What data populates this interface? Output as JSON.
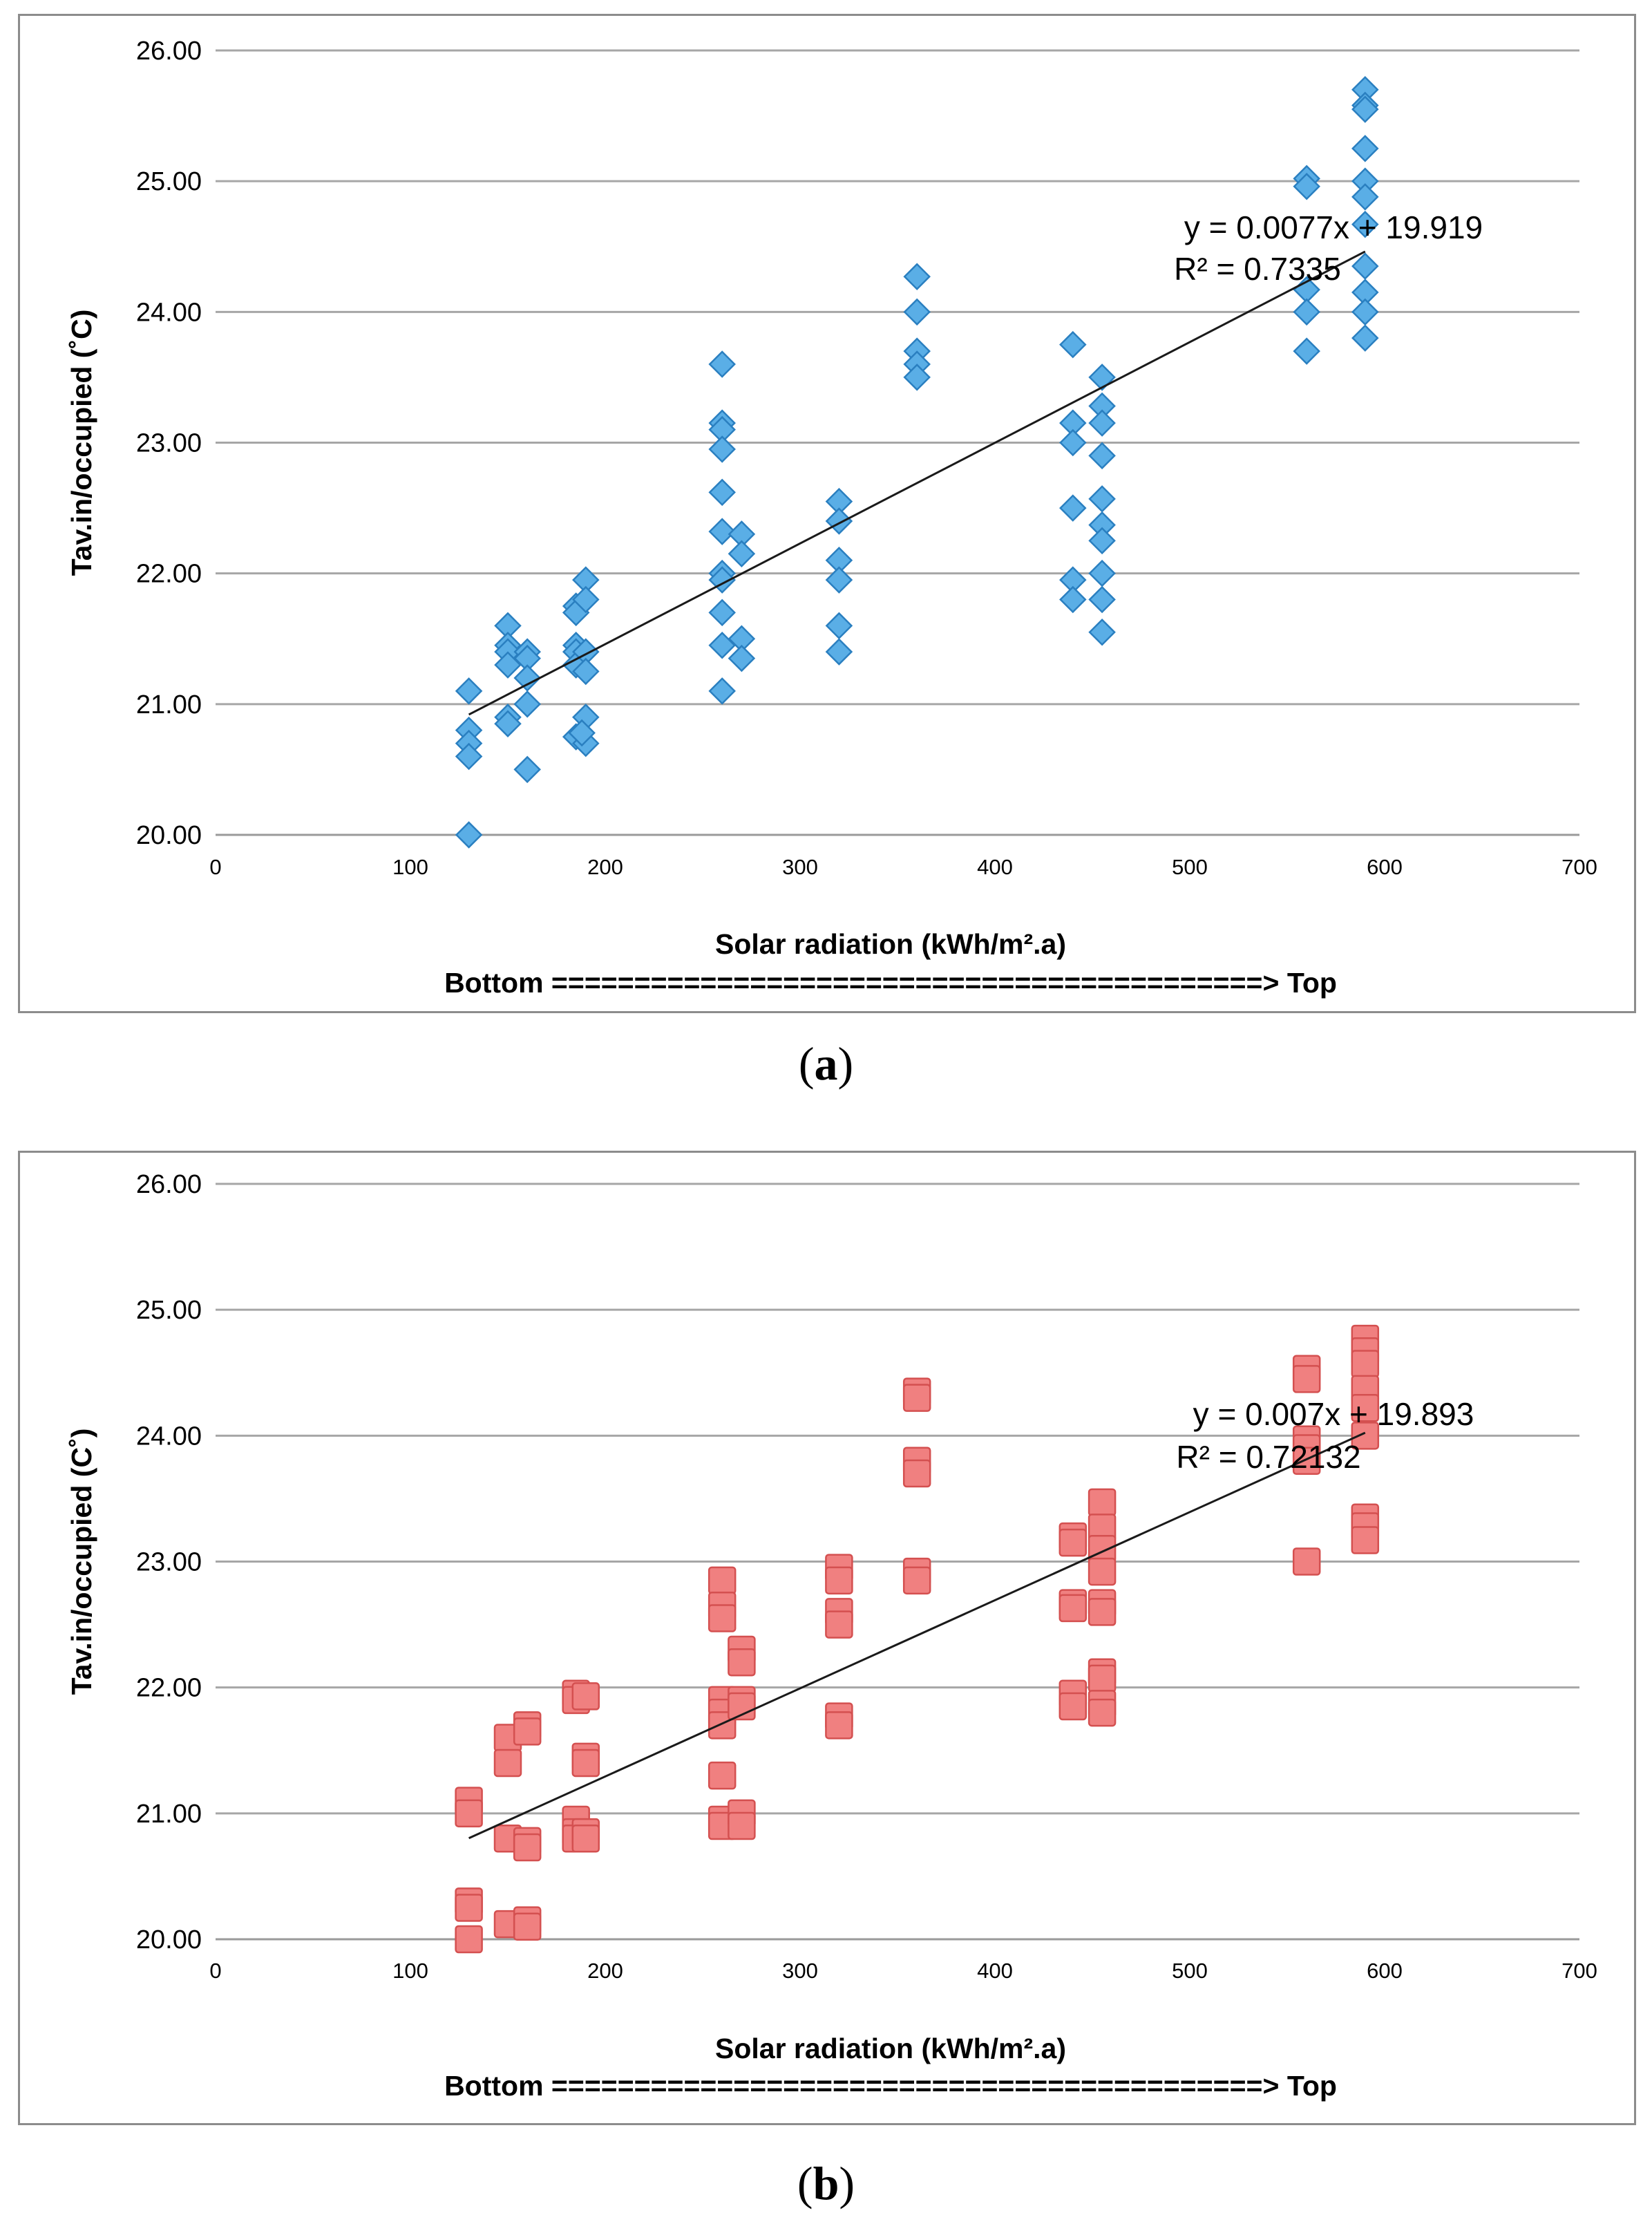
{
  "chart_data": [
    {
      "type": "scatter",
      "panel_caption": "a",
      "xlabel": "Solar radiation (kWh/m².a)",
      "xlabel_sub": "Bottom  ===========================================> Top",
      "ylabel": "Tav.in/occupied (˚C)",
      "xlim": [
        0,
        700
      ],
      "ylim": [
        20,
        26
      ],
      "xticks": [
        "0",
        "100",
        "200",
        "300",
        "400",
        "500",
        "600",
        "700"
      ],
      "yticks": [
        "20.00",
        "21.00",
        "22.00",
        "23.00",
        "24.00",
        "25.00",
        "26.00"
      ],
      "marker": "diamond",
      "marker_color": "#5aaee6",
      "marker_edge": "#2a7fc0",
      "trendline": {
        "slope": 0.0077,
        "intercept": 19.919,
        "x_range": [
          130,
          590
        ],
        "equation": "y = 0.0077x + 19.919",
        "r2": "R² = 0.7335"
      },
      "points": [
        [
          130,
          21.1
        ],
        [
          130,
          20.8
        ],
        [
          130,
          20.7
        ],
        [
          130,
          20.6
        ],
        [
          130,
          20.0
        ],
        [
          150,
          21.6
        ],
        [
          150,
          21.45
        ],
        [
          150,
          21.4
        ],
        [
          150,
          21.3
        ],
        [
          150,
          20.9
        ],
        [
          150,
          20.85
        ],
        [
          160,
          21.4
        ],
        [
          160,
          21.35
        ],
        [
          160,
          21.2
        ],
        [
          160,
          21.0
        ],
        [
          160,
          20.5
        ],
        [
          185,
          21.75
        ],
        [
          185,
          21.7
        ],
        [
          185,
          21.45
        ],
        [
          185,
          21.4
        ],
        [
          185,
          21.3
        ],
        [
          185,
          20.75
        ],
        [
          190,
          21.95
        ],
        [
          190,
          21.8
        ],
        [
          190,
          21.4
        ],
        [
          190,
          21.25
        ],
        [
          190,
          20.9
        ],
        [
          190,
          20.7
        ],
        [
          188,
          20.78
        ],
        [
          260,
          23.6
        ],
        [
          260,
          23.15
        ],
        [
          260,
          23.1
        ],
        [
          260,
          22.95
        ],
        [
          260,
          22.62
        ],
        [
          260,
          22.32
        ],
        [
          260,
          22.0
        ],
        [
          260,
          21.95
        ],
        [
          260,
          21.7
        ],
        [
          260,
          21.45
        ],
        [
          260,
          21.1
        ],
        [
          270,
          22.3
        ],
        [
          270,
          22.15
        ],
        [
          270,
          21.5
        ],
        [
          270,
          21.35
        ],
        [
          320,
          22.55
        ],
        [
          320,
          22.4
        ],
        [
          320,
          22.1
        ],
        [
          320,
          21.95
        ],
        [
          320,
          21.6
        ],
        [
          320,
          21.4
        ],
        [
          360,
          24.27
        ],
        [
          360,
          24.0
        ],
        [
          360,
          23.7
        ],
        [
          360,
          23.6
        ],
        [
          360,
          23.5
        ],
        [
          440,
          23.75
        ],
        [
          440,
          23.15
        ],
        [
          440,
          23.0
        ],
        [
          440,
          22.5
        ],
        [
          440,
          21.95
        ],
        [
          440,
          21.8
        ],
        [
          455,
          23.5
        ],
        [
          455,
          23.28
        ],
        [
          455,
          23.15
        ],
        [
          455,
          22.9
        ],
        [
          455,
          22.57
        ],
        [
          455,
          22.37
        ],
        [
          455,
          22.25
        ],
        [
          455,
          22.0
        ],
        [
          455,
          21.8
        ],
        [
          455,
          21.55
        ],
        [
          560,
          25.02
        ],
        [
          560,
          24.96
        ],
        [
          560,
          24.17
        ],
        [
          560,
          24.0
        ],
        [
          560,
          23.7
        ],
        [
          590,
          25.7
        ],
        [
          590,
          25.58
        ],
        [
          590,
          25.55
        ],
        [
          590,
          25.25
        ],
        [
          590,
          25.0
        ],
        [
          590,
          24.88
        ],
        [
          590,
          24.67
        ],
        [
          590,
          24.35
        ],
        [
          590,
          24.15
        ],
        [
          590,
          24.0
        ],
        [
          590,
          23.8
        ]
      ]
    },
    {
      "type": "scatter",
      "panel_caption": "b",
      "xlabel": "Solar radiation (kWh/m².a)",
      "xlabel_sub": "Bottom  ===========================================> Top",
      "ylabel": "Tav.in/occupied (C˚)",
      "xlim": [
        0,
        700
      ],
      "ylim": [
        20,
        26
      ],
      "xticks": [
        "0",
        "100",
        "200",
        "300",
        "400",
        "500",
        "600",
        "700"
      ],
      "yticks": [
        "20.00",
        "21.00",
        "22.00",
        "23.00",
        "24.00",
        "25.00",
        "26.00"
      ],
      "marker": "square",
      "marker_color": "#f08080",
      "marker_edge": "#d45050",
      "trendline": {
        "slope": 0.007,
        "intercept": 19.893,
        "x_range": [
          130,
          590
        ],
        "equation": "y = 0.007x + 19.893",
        "r2": "R² = 0.72132"
      },
      "points": [
        [
          130,
          21.1
        ],
        [
          130,
          21.0
        ],
        [
          130,
          20.3
        ],
        [
          130,
          20.25
        ],
        [
          130,
          20.0
        ],
        [
          150,
          21.6
        ],
        [
          150,
          21.4
        ],
        [
          150,
          20.8
        ],
        [
          150,
          20.12
        ],
        [
          160,
          21.7
        ],
        [
          160,
          21.65
        ],
        [
          160,
          20.78
        ],
        [
          160,
          20.73
        ],
        [
          160,
          20.15
        ],
        [
          160,
          20.1
        ],
        [
          185,
          21.95
        ],
        [
          185,
          21.9
        ],
        [
          185,
          20.95
        ],
        [
          185,
          20.85
        ],
        [
          185,
          20.8
        ],
        [
          190,
          21.93
        ],
        [
          190,
          21.45
        ],
        [
          190,
          21.4
        ],
        [
          190,
          20.85
        ],
        [
          190,
          20.8
        ],
        [
          260,
          22.85
        ],
        [
          260,
          22.65
        ],
        [
          260,
          22.55
        ],
        [
          260,
          21.9
        ],
        [
          260,
          21.8
        ],
        [
          260,
          21.7
        ],
        [
          260,
          21.3
        ],
        [
          260,
          20.95
        ],
        [
          260,
          20.9
        ],
        [
          270,
          22.3
        ],
        [
          270,
          22.2
        ],
        [
          270,
          21.9
        ],
        [
          270,
          21.85
        ],
        [
          270,
          21.0
        ],
        [
          270,
          20.9
        ],
        [
          320,
          22.95
        ],
        [
          320,
          22.85
        ],
        [
          320,
          22.6
        ],
        [
          320,
          22.5
        ],
        [
          320,
          21.77
        ],
        [
          320,
          21.7
        ],
        [
          360,
          24.35
        ],
        [
          360,
          24.3
        ],
        [
          360,
          23.8
        ],
        [
          360,
          23.7
        ],
        [
          360,
          22.92
        ],
        [
          360,
          22.85
        ],
        [
          440,
          23.2
        ],
        [
          440,
          23.15
        ],
        [
          440,
          22.67
        ],
        [
          440,
          22.63
        ],
        [
          440,
          21.95
        ],
        [
          440,
          21.85
        ],
        [
          455,
          23.47
        ],
        [
          455,
          23.27
        ],
        [
          455,
          23.1
        ],
        [
          455,
          22.92
        ],
        [
          455,
          22.67
        ],
        [
          455,
          22.6
        ],
        [
          455,
          22.12
        ],
        [
          455,
          22.07
        ],
        [
          455,
          21.87
        ],
        [
          455,
          21.8
        ],
        [
          560,
          24.53
        ],
        [
          560,
          24.45
        ],
        [
          560,
          23.97
        ],
        [
          560,
          23.9
        ],
        [
          560,
          23.8
        ],
        [
          560,
          23.0
        ],
        [
          590,
          24.77
        ],
        [
          590,
          24.67
        ],
        [
          590,
          24.57
        ],
        [
          590,
          24.37
        ],
        [
          590,
          24.22
        ],
        [
          590,
          24.0
        ],
        [
          590,
          23.35
        ],
        [
          590,
          23.28
        ],
        [
          590,
          23.17
        ]
      ]
    }
  ],
  "captions": {
    "a": "a",
    "b": "b"
  }
}
